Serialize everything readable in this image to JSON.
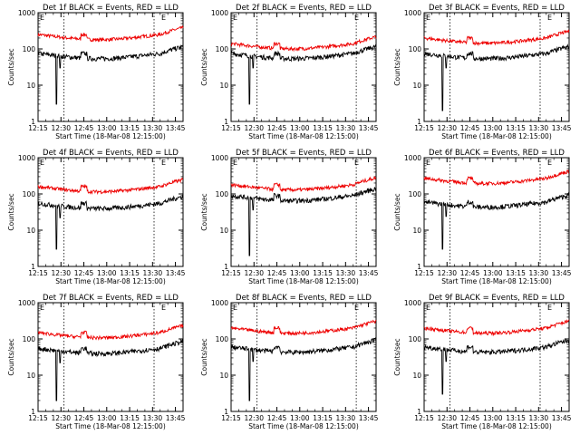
{
  "colors": {
    "events": "#000000",
    "lld": "#ee0000",
    "axes": "#000000",
    "background": "#ffffff"
  },
  "x_axis": {
    "label": "Start Time (18-Mar-08 12:15:00)",
    "ticks": [
      "12:15",
      "12:30",
      "12:45",
      "13:00",
      "13:15",
      "13:30",
      "13:45"
    ],
    "range_minutes": [
      0,
      95
    ]
  },
  "y_axis": {
    "label": "Counts/sec",
    "scale": "log",
    "range": [
      1,
      1000
    ],
    "ticks": [
      "1",
      "10",
      "100",
      "1000"
    ]
  },
  "chart_data": [
    {
      "type": "line",
      "title": "Det 1f BLACK = Events, RED = LLD",
      "corner_marks": [
        "E",
        "E"
      ],
      "vlines_min": [
        17,
        76
      ],
      "events_baseline": 75,
      "lld_baseline": 250,
      "spike_min": 12,
      "spike_low": 3,
      "series": [
        {
          "name": "Events"
        },
        {
          "name": "LLD"
        }
      ]
    },
    {
      "type": "line",
      "title": "Det 2f BLACK = Events, RED = LLD",
      "corner_marks": [
        "E",
        "E"
      ],
      "vlines_min": [
        17,
        82
      ],
      "events_baseline": 75,
      "lld_baseline": 140,
      "spike_min": 12,
      "spike_low": 3,
      "series": [
        {
          "name": "Events"
        },
        {
          "name": "LLD"
        }
      ]
    },
    {
      "type": "line",
      "title": "Det 3f BLACK = Events, RED = LLD",
      "corner_marks": [
        "E",
        "E"
      ],
      "vlines_min": [
        17,
        76
      ],
      "events_baseline": 75,
      "lld_baseline": 200,
      "spike_min": 12,
      "spike_low": 2,
      "series": [
        {
          "name": "Events"
        },
        {
          "name": "LLD"
        }
      ]
    },
    {
      "type": "line",
      "title": "Det 4f BLACK = Events, RED = LLD",
      "corner_marks": [
        "E",
        "E"
      ],
      "vlines_min": [
        17,
        76
      ],
      "events_baseline": 55,
      "lld_baseline": 160,
      "spike_min": 12,
      "spike_low": 3,
      "series": [
        {
          "name": "Events"
        },
        {
          "name": "LLD"
        }
      ]
    },
    {
      "type": "line",
      "title": "Det 5f BLACK = Events, RED = LLD",
      "corner_marks": [
        "E",
        "E"
      ],
      "vlines_min": [
        17,
        82
      ],
      "events_baseline": 90,
      "lld_baseline": 180,
      "spike_min": 12,
      "spike_low": 2,
      "series": [
        {
          "name": "Events"
        },
        {
          "name": "LLD"
        }
      ]
    },
    {
      "type": "line",
      "title": "Det 6f BLACK = Events, RED = LLD",
      "corner_marks": [
        "E",
        "E"
      ],
      "vlines_min": [
        17,
        76
      ],
      "events_baseline": 60,
      "lld_baseline": 270,
      "spike_min": 12,
      "spike_low": 3,
      "series": [
        {
          "name": "Events"
        },
        {
          "name": "LLD"
        }
      ]
    },
    {
      "type": "line",
      "title": "Det 7f BLACK = Events, RED = LLD",
      "corner_marks": [
        "E",
        "E"
      ],
      "vlines_min": [
        17,
        76
      ],
      "events_baseline": 55,
      "lld_baseline": 150,
      "spike_min": 12,
      "spike_low": 2,
      "series": [
        {
          "name": "Events"
        },
        {
          "name": "LLD"
        }
      ]
    },
    {
      "type": "line",
      "title": "Det 8f BLACK = Events, RED = LLD",
      "corner_marks": [
        "E",
        "E"
      ],
      "vlines_min": [
        17,
        82
      ],
      "events_baseline": 60,
      "lld_baseline": 200,
      "spike_min": 12,
      "spike_low": 2,
      "series": [
        {
          "name": "Events"
        },
        {
          "name": "LLD"
        }
      ]
    },
    {
      "type": "line",
      "title": "Det 9f BLACK = Events, RED = LLD",
      "corner_marks": [
        "E",
        "E"
      ],
      "vlines_min": [
        17,
        76
      ],
      "events_baseline": 60,
      "lld_baseline": 200,
      "spike_min": 12,
      "spike_low": 3,
      "series": [
        {
          "name": "Events"
        },
        {
          "name": "LLD"
        }
      ]
    }
  ]
}
